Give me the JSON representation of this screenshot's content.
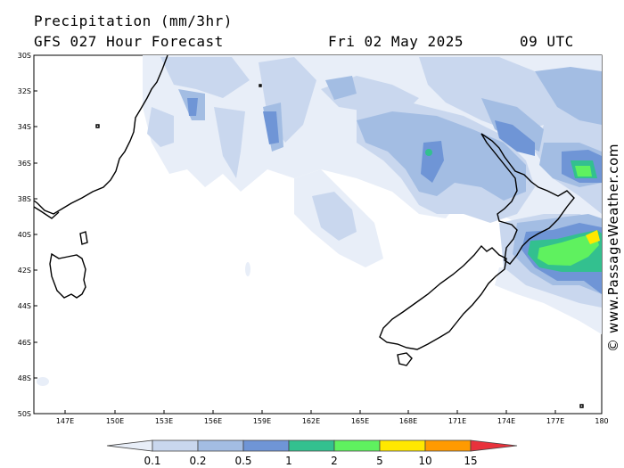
{
  "header": {
    "title": "Precipitation (mm/3hr)",
    "model": "GFS 027 Hour Forecast",
    "date": "Fri 02 May 2025",
    "time": "09 UTC"
  },
  "credit": "© www.PassageWeather.com",
  "axes": {
    "lat_labels": [
      "30S",
      "32S",
      "34S",
      "36S",
      "38S",
      "40S",
      "42S",
      "44S",
      "46S",
      "48S",
      "50S"
    ],
    "lon_labels": [
      "147E",
      "150E",
      "153E",
      "156E",
      "159E",
      "162E",
      "165E",
      "168E",
      "171E",
      "174E",
      "177E",
      "180"
    ]
  },
  "colorbar": {
    "labels": [
      "0.1",
      "0.2",
      "0.5",
      "1",
      "2",
      "5",
      "10",
      "15"
    ],
    "colors": [
      "#e8eef8",
      "#c9d7ee",
      "#a3bde3",
      "#6f95d6",
      "#33c08f",
      "#5ff15f",
      "#ffe800",
      "#ff9a00",
      "#e8323c"
    ]
  }
}
